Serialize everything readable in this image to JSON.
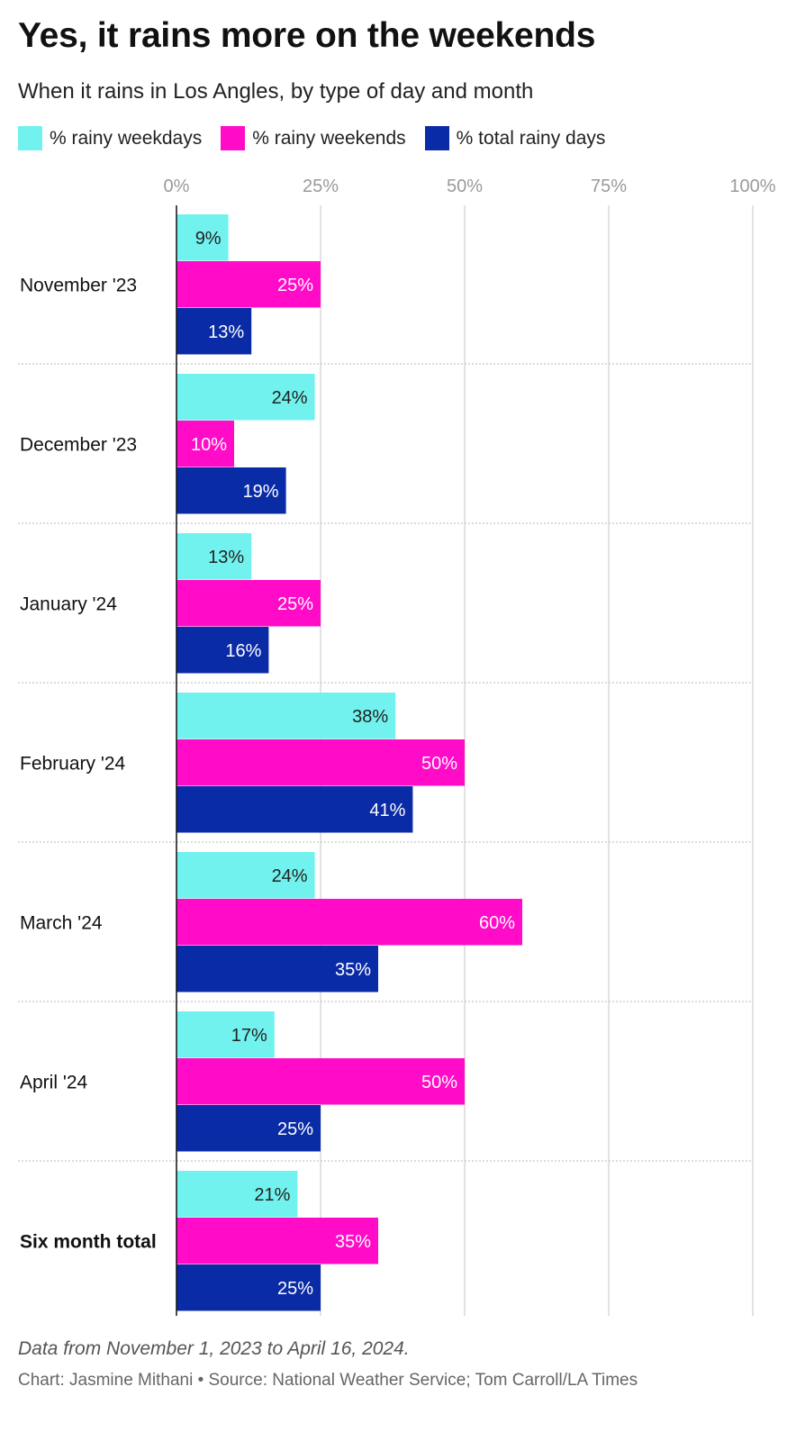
{
  "header": {
    "title": "Yes, it rains more on the weekends",
    "subtitle": "When it rains in Los Angles, by type of day and month"
  },
  "colors": {
    "weekdays": "#72f2ee",
    "weekends": "#ff0bc8",
    "total": "#0a2ba6",
    "grid": "#d9d9d9",
    "tick": "#9a9a9a"
  },
  "chart_data": {
    "type": "bar",
    "orientation": "horizontal",
    "categories": [
      "November '23",
      "December '23",
      "January '24",
      "February '24",
      "March '24",
      "April '24",
      "Six month total"
    ],
    "bold_categories": [
      "Six month total"
    ],
    "series": [
      {
        "name": "% rainy weekdays",
        "values": [
          9,
          24,
          13,
          38,
          24,
          17,
          21
        ]
      },
      {
        "name": "% rainy weekends",
        "values": [
          25,
          10,
          25,
          50,
          60,
          50,
          35
        ]
      },
      {
        "name": "% total rainy days",
        "values": [
          13,
          19,
          16,
          41,
          35,
          25,
          25
        ]
      }
    ],
    "xlim": [
      0,
      100
    ],
    "xticks": [
      "0%",
      "25%",
      "50%",
      "75%",
      "100%"
    ],
    "value_suffix": "%",
    "legend_position": "top-left",
    "grid": true
  },
  "footer": {
    "note": "Data from November 1, 2023 to April 16, 2024.",
    "credit": "Chart: Jasmine Mithani • Source: National Weather Service; Tom Carroll/LA Times"
  }
}
